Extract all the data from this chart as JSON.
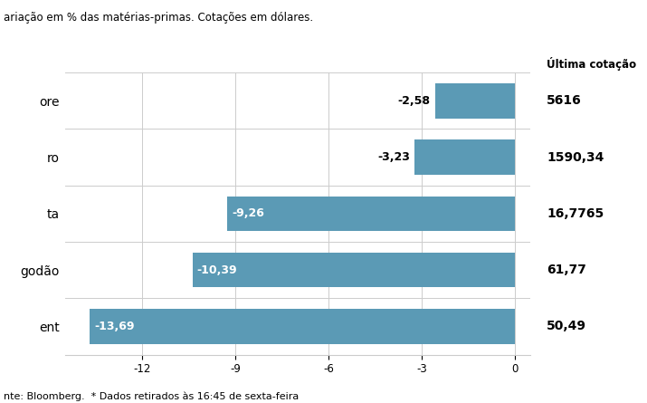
{
  "subtitle": "ariação em % das matérias-primas. Cotações em dólares.",
  "footer": "nte: Bloomberg.  * Dados retirados às 16:45 de sexta-feira",
  "ultima_cotacao_label": "Última cotação",
  "categories_display": [
    "ore",
    "ro",
    "ta",
    "godão",
    "ent"
  ],
  "values": [
    -2.58,
    -3.23,
    -9.26,
    -10.39,
    -13.69
  ],
  "cotacoes": [
    "5616",
    "1590,34",
    "16,7765",
    "61,77",
    "50,49"
  ],
  "bar_color": "#5b9ab5",
  "xlim_left": -14.5,
  "xlim_right": 0.5,
  "xticks": [
    -12,
    -9,
    -6,
    -3,
    0
  ],
  "value_fontsize": 9,
  "label_fontsize": 10,
  "cotacao_fontsize": 10,
  "background_color": "#ffffff",
  "grid_color": "#cccccc",
  "bar_height": 0.62,
  "subtitle_fontsize": 8.5,
  "footer_fontsize": 8
}
